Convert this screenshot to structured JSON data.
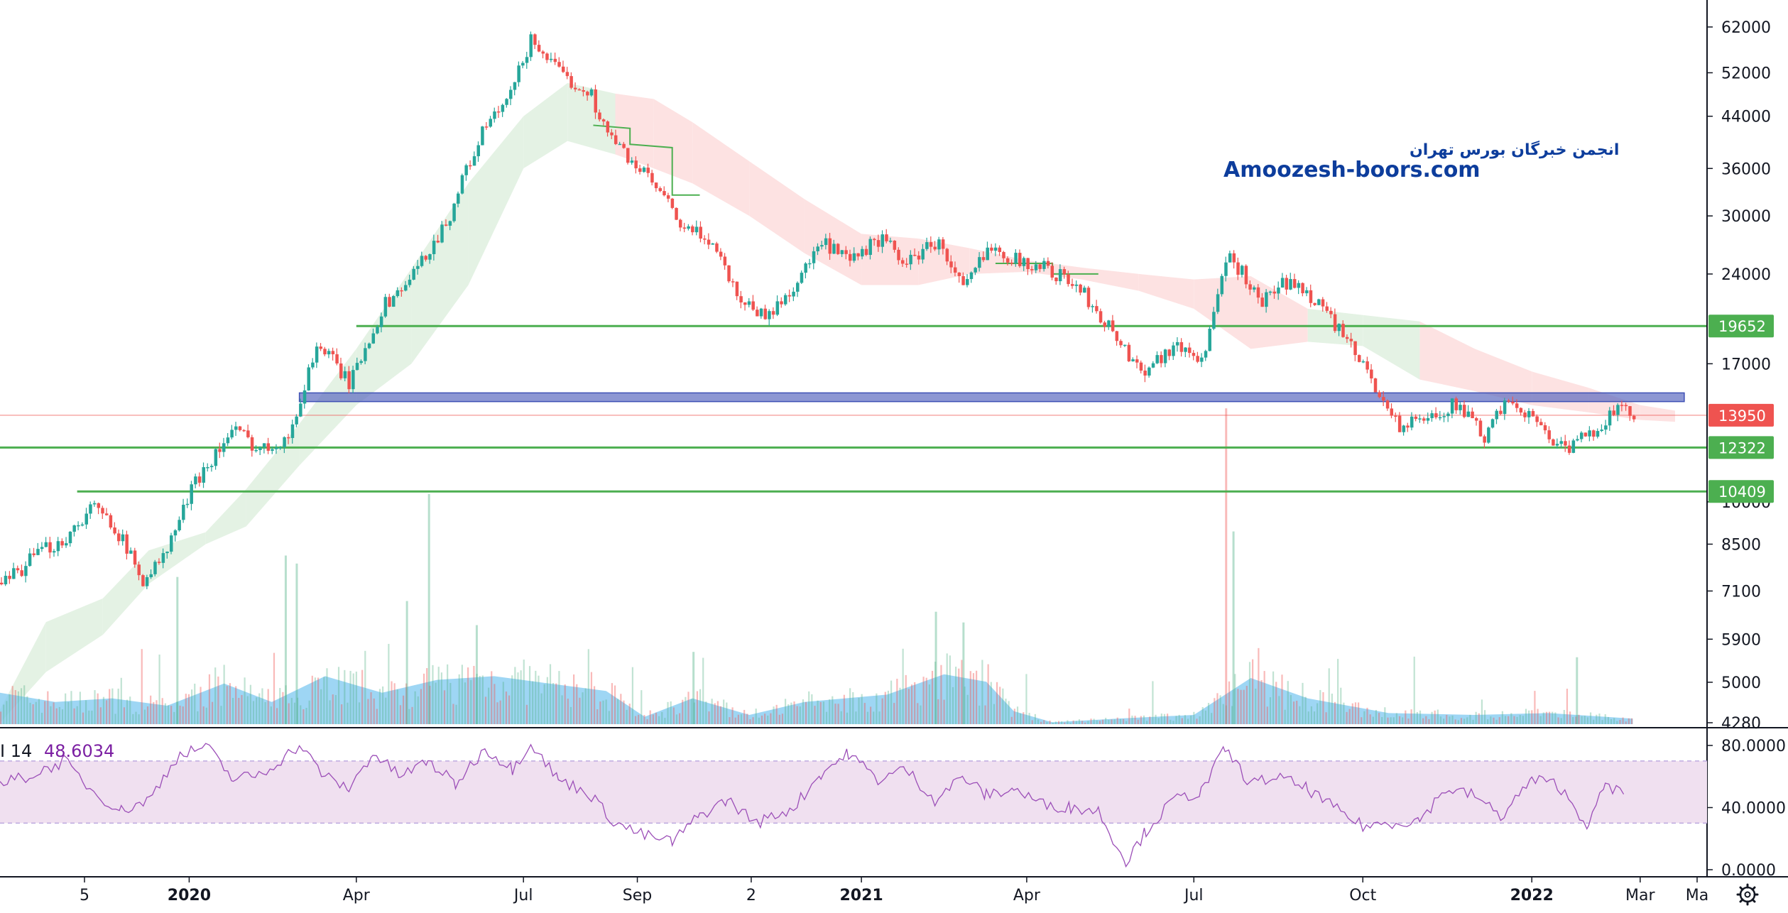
{
  "chart_data": {
    "type": "candlestick",
    "y_scale": "log",
    "ylim": [
      4280,
      70000
    ],
    "x_range": [
      "2019-09-20",
      "2022-04-01"
    ],
    "price_axis_ticks": [
      62000,
      52000,
      44000,
      36000,
      30000,
      24000,
      17000,
      10000,
      8500,
      7100,
      5900,
      5000,
      4280
    ],
    "time_axis_labels": [
      {
        "label": "5",
        "date": "2019-11-05",
        "bold": false
      },
      {
        "label": "2020",
        "date": "2020-01-01",
        "bold": true
      },
      {
        "label": "Apr",
        "date": "2020-04-01",
        "bold": false
      },
      {
        "label": "Jul",
        "date": "2020-07-01",
        "bold": false
      },
      {
        "label": "Sep",
        "date": "2020-09-01",
        "bold": false
      },
      {
        "label": "2",
        "date": "2020-11-02",
        "bold": false
      },
      {
        "label": "2021",
        "date": "2021-01-01",
        "bold": true
      },
      {
        "label": "Apr",
        "date": "2021-04-01",
        "bold": false
      },
      {
        "label": "Jul",
        "date": "2021-07-01",
        "bold": false
      },
      {
        "label": "Oct",
        "date": "2021-10-01",
        "bold": false
      },
      {
        "label": "2022",
        "date": "2022-01-01",
        "bold": true
      },
      {
        "label": "Mar",
        "date": "2022-03-01",
        "bold": false
      },
      {
        "label": "Ma",
        "date": "2022-04-01",
        "bold": false
      }
    ],
    "price_path": [
      [
        "2019-09-20",
        7200
      ],
      [
        "2019-10-10",
        8200
      ],
      [
        "2019-10-25",
        8700
      ],
      [
        "2019-11-08",
        9800
      ],
      [
        "2019-11-20",
        9200
      ],
      [
        "2019-12-05",
        7400
      ],
      [
        "2019-12-18",
        8100
      ],
      [
        "2020-01-05",
        11000
      ],
      [
        "2020-01-25",
        13200
      ],
      [
        "2020-02-08",
        12200
      ],
      [
        "2020-02-25",
        13000
      ],
      [
        "2020-03-10",
        18400
      ],
      [
        "2020-03-28",
        15700
      ],
      [
        "2020-04-15",
        21200
      ],
      [
        "2020-05-01",
        23800
      ],
      [
        "2020-05-20",
        29500
      ],
      [
        "2020-06-10",
        42500
      ],
      [
        "2020-06-22",
        46500
      ],
      [
        "2020-07-05",
        59500
      ],
      [
        "2020-07-20",
        51500
      ],
      [
        "2020-08-05",
        48500
      ],
      [
        "2020-08-15",
        41000
      ],
      [
        "2020-08-25",
        38000
      ],
      [
        "2020-09-10",
        33500
      ],
      [
        "2020-09-25",
        28500
      ],
      [
        "2020-10-10",
        27500
      ],
      [
        "2020-10-25",
        22000
      ],
      [
        "2020-11-10",
        20300
      ],
      [
        "2020-11-25",
        23000
      ],
      [
        "2020-12-10",
        27000
      ],
      [
        "2020-12-25",
        25000
      ],
      [
        "2021-01-10",
        27500
      ],
      [
        "2021-01-25",
        25000
      ],
      [
        "2021-02-10",
        27300
      ],
      [
        "2021-02-25",
        22500
      ],
      [
        "2021-03-12",
        27000
      ],
      [
        "2021-03-25",
        25300
      ],
      [
        "2021-04-12",
        24500
      ],
      [
        "2021-04-28",
        22800
      ],
      [
        "2021-05-18",
        19000
      ],
      [
        "2021-06-01",
        16500
      ],
      [
        "2021-06-20",
        18200
      ],
      [
        "2021-07-05",
        17300
      ],
      [
        "2021-07-20",
        25800
      ],
      [
        "2021-08-05",
        21500
      ],
      [
        "2021-08-20",
        23300
      ],
      [
        "2021-09-05",
        21800
      ],
      [
        "2021-09-20",
        18700
      ],
      [
        "2021-10-05",
        16000
      ],
      [
        "2021-10-20",
        13300
      ],
      [
        "2021-11-05",
        13800
      ],
      [
        "2021-11-20",
        14600
      ],
      [
        "2021-12-05",
        12800
      ],
      [
        "2021-12-20",
        14900
      ],
      [
        "2022-01-05",
        13300
      ],
      [
        "2022-01-20",
        12100
      ],
      [
        "2022-02-05",
        13400
      ],
      [
        "2022-02-15",
        14200
      ],
      [
        "2022-02-25",
        13950
      ]
    ],
    "ichimoku_cloud": [
      [
        "2019-09-20",
        4280,
        4500
      ],
      [
        "2019-10-15",
        5200,
        6300
      ],
      [
        "2019-11-15",
        6000,
        6900
      ],
      [
        "2019-12-10",
        7300,
        8300
      ],
      [
        "2020-01-10",
        8500,
        8900
      ],
      [
        "2020-02-01",
        9100,
        10500
      ],
      [
        "2020-03-01",
        11500,
        13500
      ],
      [
        "2020-04-01",
        14500,
        18000
      ],
      [
        "2020-05-01",
        17000,
        24500
      ],
      [
        "2020-06-01",
        23000,
        34000
      ],
      [
        "2020-07-01",
        36000,
        44000
      ],
      [
        "2020-07-25",
        40000,
        50000
      ],
      [
        "2020-08-20",
        38000,
        48000
      ],
      [
        "2020-09-10",
        36000,
        47000
      ],
      [
        "2020-10-01",
        34000,
        43000
      ],
      [
        "2020-11-01",
        30000,
        37000
      ],
      [
        "2020-12-01",
        26000,
        32000
      ],
      [
        "2021-01-01",
        23000,
        28000
      ],
      [
        "2021-02-01",
        23000,
        27500
      ],
      [
        "2021-03-01",
        24000,
        26500
      ],
      [
        "2021-04-01",
        24200,
        25300
      ],
      [
        "2021-05-01",
        23500,
        24600
      ],
      [
        "2021-06-01",
        22500,
        24000
      ],
      [
        "2021-07-01",
        21000,
        23500
      ],
      [
        "2021-08-01",
        18000,
        23800
      ],
      [
        "2021-09-01",
        18500,
        21000
      ],
      [
        "2021-10-01",
        18200,
        20500
      ],
      [
        "2021-11-01",
        16000,
        20000
      ],
      [
        "2021-12-01",
        15300,
        18000
      ],
      [
        "2022-01-01",
        14500,
        16500
      ],
      [
        "2022-02-01",
        14100,
        15500
      ],
      [
        "2022-03-01",
        13700,
        14500
      ],
      [
        "2022-03-20",
        13600,
        14200
      ]
    ],
    "volume_profile": [
      [
        "2019-09-20",
        0.17
      ],
      [
        "2019-10-20",
        0.12
      ],
      [
        "2019-11-20",
        0.14
      ],
      [
        "2019-12-20",
        0.1
      ],
      [
        "2020-01-20",
        0.22
      ],
      [
        "2020-02-15",
        0.12
      ],
      [
        "2020-03-15",
        0.26
      ],
      [
        "2020-04-15",
        0.17
      ],
      [
        "2020-05-15",
        0.24
      ],
      [
        "2020-06-15",
        0.26
      ],
      [
        "2020-07-15",
        0.22
      ],
      [
        "2020-08-15",
        0.18
      ],
      [
        "2020-09-05",
        0.04
      ],
      [
        "2020-10-01",
        0.14
      ],
      [
        "2020-11-01",
        0.05
      ],
      [
        "2020-12-01",
        0.12
      ],
      [
        "2021-01-15",
        0.16
      ],
      [
        "2021-02-15",
        0.27
      ],
      [
        "2021-03-10",
        0.23
      ],
      [
        "2021-03-25",
        0.07
      ],
      [
        "2021-04-15",
        0.01
      ],
      [
        "2021-05-20",
        0.03
      ],
      [
        "2021-07-01",
        0.05
      ],
      [
        "2021-08-01",
        0.25
      ],
      [
        "2021-09-01",
        0.14
      ],
      [
        "2021-10-15",
        0.06
      ],
      [
        "2021-12-01",
        0.05
      ],
      [
        "2022-01-10",
        0.06
      ],
      [
        "2022-02-25",
        0.03
      ]
    ],
    "volume_spikes": [
      [
        "2019-12-25",
        0.55
      ],
      [
        "2020-02-22",
        0.63
      ],
      [
        "2020-02-28",
        0.6
      ],
      [
        "2020-05-10",
        0.86
      ],
      [
        "2020-04-28",
        0.46
      ],
      [
        "2020-06-05",
        0.37
      ],
      [
        "2020-10-01",
        0.27
      ],
      [
        "2021-02-10",
        0.42
      ],
      [
        "2021-02-25",
        0.38
      ],
      [
        "2021-07-18",
        1.18
      ],
      [
        "2021-07-22",
        0.72
      ],
      [
        "2022-01-25",
        0.25
      ]
    ],
    "horizontal_levels": [
      {
        "value": 19652,
        "label": "19652",
        "color": "#4caf50",
        "start": "2020-04-01"
      },
      {
        "value": 12322,
        "label": "12322",
        "color": "#4caf50",
        "start": "2019-09-20"
      },
      {
        "value": 10409,
        "label": "10409",
        "color": "#4caf50",
        "start": "2019-11-01"
      },
      {
        "value": 13950,
        "label": "13950",
        "color": "#ef5350",
        "start": "2019-09-20",
        "current_price": true
      }
    ],
    "zone": {
      "from": 14700,
      "to": 15200,
      "start": "2020-03-01",
      "end": "2022-03-25",
      "color": "#5c6bc0"
    },
    "watermark": {
      "line1": "انجمن خبرگان بورس تهران",
      "line2": "Amoozesh-boors.com"
    },
    "rsi": {
      "label": "I 14",
      "value": "48.6034",
      "upper_band": 70,
      "lower_band": 30,
      "ticks": [
        "80.0000",
        "40.0000",
        "0.0000"
      ],
      "tick_values": [
        80,
        40,
        0
      ],
      "series": [
        [
          "2019-09-20",
          55
        ],
        [
          "2019-10-10",
          62
        ],
        [
          "2019-10-25",
          70
        ],
        [
          "2019-11-10",
          50
        ],
        [
          "2019-11-25",
          38
        ],
        [
          "2019-12-10",
          45
        ],
        [
          "2019-12-25",
          72
        ],
        [
          "2020-01-10",
          80
        ],
        [
          "2020-01-25",
          58
        ],
        [
          "2020-02-10",
          62
        ],
        [
          "2020-03-01",
          80
        ],
        [
          "2020-03-15",
          60
        ],
        [
          "2020-03-28",
          52
        ],
        [
          "2020-04-10",
          75
        ],
        [
          "2020-04-25",
          60
        ],
        [
          "2020-05-10",
          70
        ],
        [
          "2020-05-25",
          55
        ],
        [
          "2020-06-10",
          78
        ],
        [
          "2020-06-25",
          65
        ],
        [
          "2020-07-05",
          82
        ],
        [
          "2020-07-20",
          58
        ],
        [
          "2020-08-05",
          50
        ],
        [
          "2020-08-20",
          30
        ],
        [
          "2020-09-05",
          22
        ],
        [
          "2020-09-20",
          18
        ],
        [
          "2020-10-05",
          35
        ],
        [
          "2020-10-20",
          45
        ],
        [
          "2020-11-05",
          30
        ],
        [
          "2020-11-25",
          40
        ],
        [
          "2020-12-10",
          62
        ],
        [
          "2020-12-25",
          75
        ],
        [
          "2021-01-10",
          58
        ],
        [
          "2021-01-25",
          65
        ],
        [
          "2021-02-10",
          45
        ],
        [
          "2021-02-25",
          60
        ],
        [
          "2021-03-10",
          48
        ],
        [
          "2021-03-25",
          52
        ],
        [
          "2021-04-10",
          42
        ],
        [
          "2021-04-25",
          40
        ],
        [
          "2021-05-10",
          38
        ],
        [
          "2021-05-25",
          5
        ],
        [
          "2021-06-05",
          25
        ],
        [
          "2021-06-20",
          45
        ],
        [
          "2021-07-05",
          50
        ],
        [
          "2021-07-18",
          78
        ],
        [
          "2021-08-01",
          55
        ],
        [
          "2021-08-15",
          60
        ],
        [
          "2021-09-01",
          52
        ],
        [
          "2021-09-15",
          40
        ],
        [
          "2021-10-01",
          28
        ],
        [
          "2021-10-15",
          30
        ],
        [
          "2021-11-01",
          32
        ],
        [
          "2021-11-15",
          52
        ],
        [
          "2021-12-01",
          48
        ],
        [
          "2021-12-15",
          34
        ],
        [
          "2022-01-01",
          58
        ],
        [
          "2022-01-15",
          55
        ],
        [
          "2022-02-01",
          28
        ],
        [
          "2022-02-10",
          55
        ],
        [
          "2022-02-20",
          48.6
        ]
      ]
    }
  },
  "icons": {
    "settings": "gear-icon"
  },
  "colors": {
    "up": "#26a69a",
    "up_faint": "#4caf82",
    "down": "#ef5350",
    "cloud_green": "#e4f2e4",
    "cloud_red": "#fde2e2",
    "volume_area": "#7ec8f0",
    "rsi_band": "#f0e0f0",
    "rsi_line": "#9c4fb8",
    "rsi_label": "#7b1fa2",
    "kijun": "#4caf50",
    "grid": "#f0f3fa"
  }
}
